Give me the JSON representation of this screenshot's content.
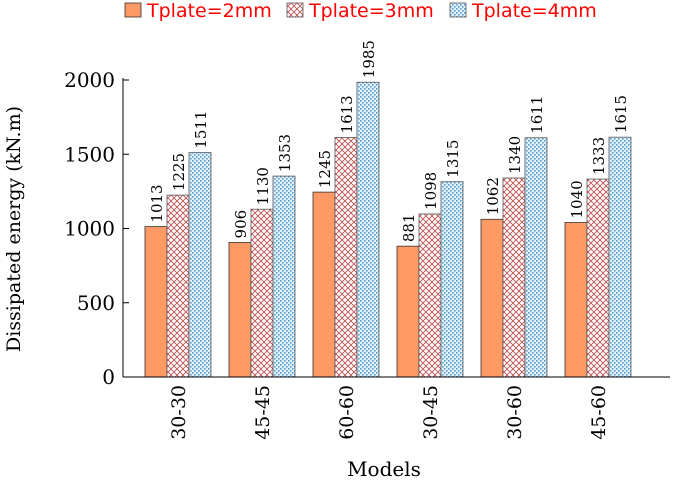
{
  "chart_data": {
    "type": "bar",
    "title": "",
    "xlabel": "Models",
    "ylabel": "Dissipated energy (kN.m)",
    "ylim": [
      0,
      2000
    ],
    "yticks": [
      0,
      500,
      1000,
      1500,
      2000
    ],
    "grid": false,
    "legend_position": "top",
    "categories": [
      "30-30",
      "45-45",
      "60-60",
      "30-45",
      "30-60",
      "45-60"
    ],
    "series": [
      {
        "name": "Tplate=2mm",
        "values": [
          1013,
          906,
          1245,
          881,
          1062,
          1040
        ],
        "color": "#ff9966",
        "pattern": "solid"
      },
      {
        "name": "Tplate=3mm",
        "values": [
          1225,
          1130,
          1613,
          1098,
          1340,
          1333
        ],
        "color": "#cc6666",
        "pattern": "crosshatch"
      },
      {
        "name": "Tplate=4mm",
        "values": [
          1511,
          1353,
          1985,
          1315,
          1611,
          1615
        ],
        "color": "#66aadd",
        "pattern": "dots"
      }
    ],
    "legend_text_color": "#ff0000"
  }
}
